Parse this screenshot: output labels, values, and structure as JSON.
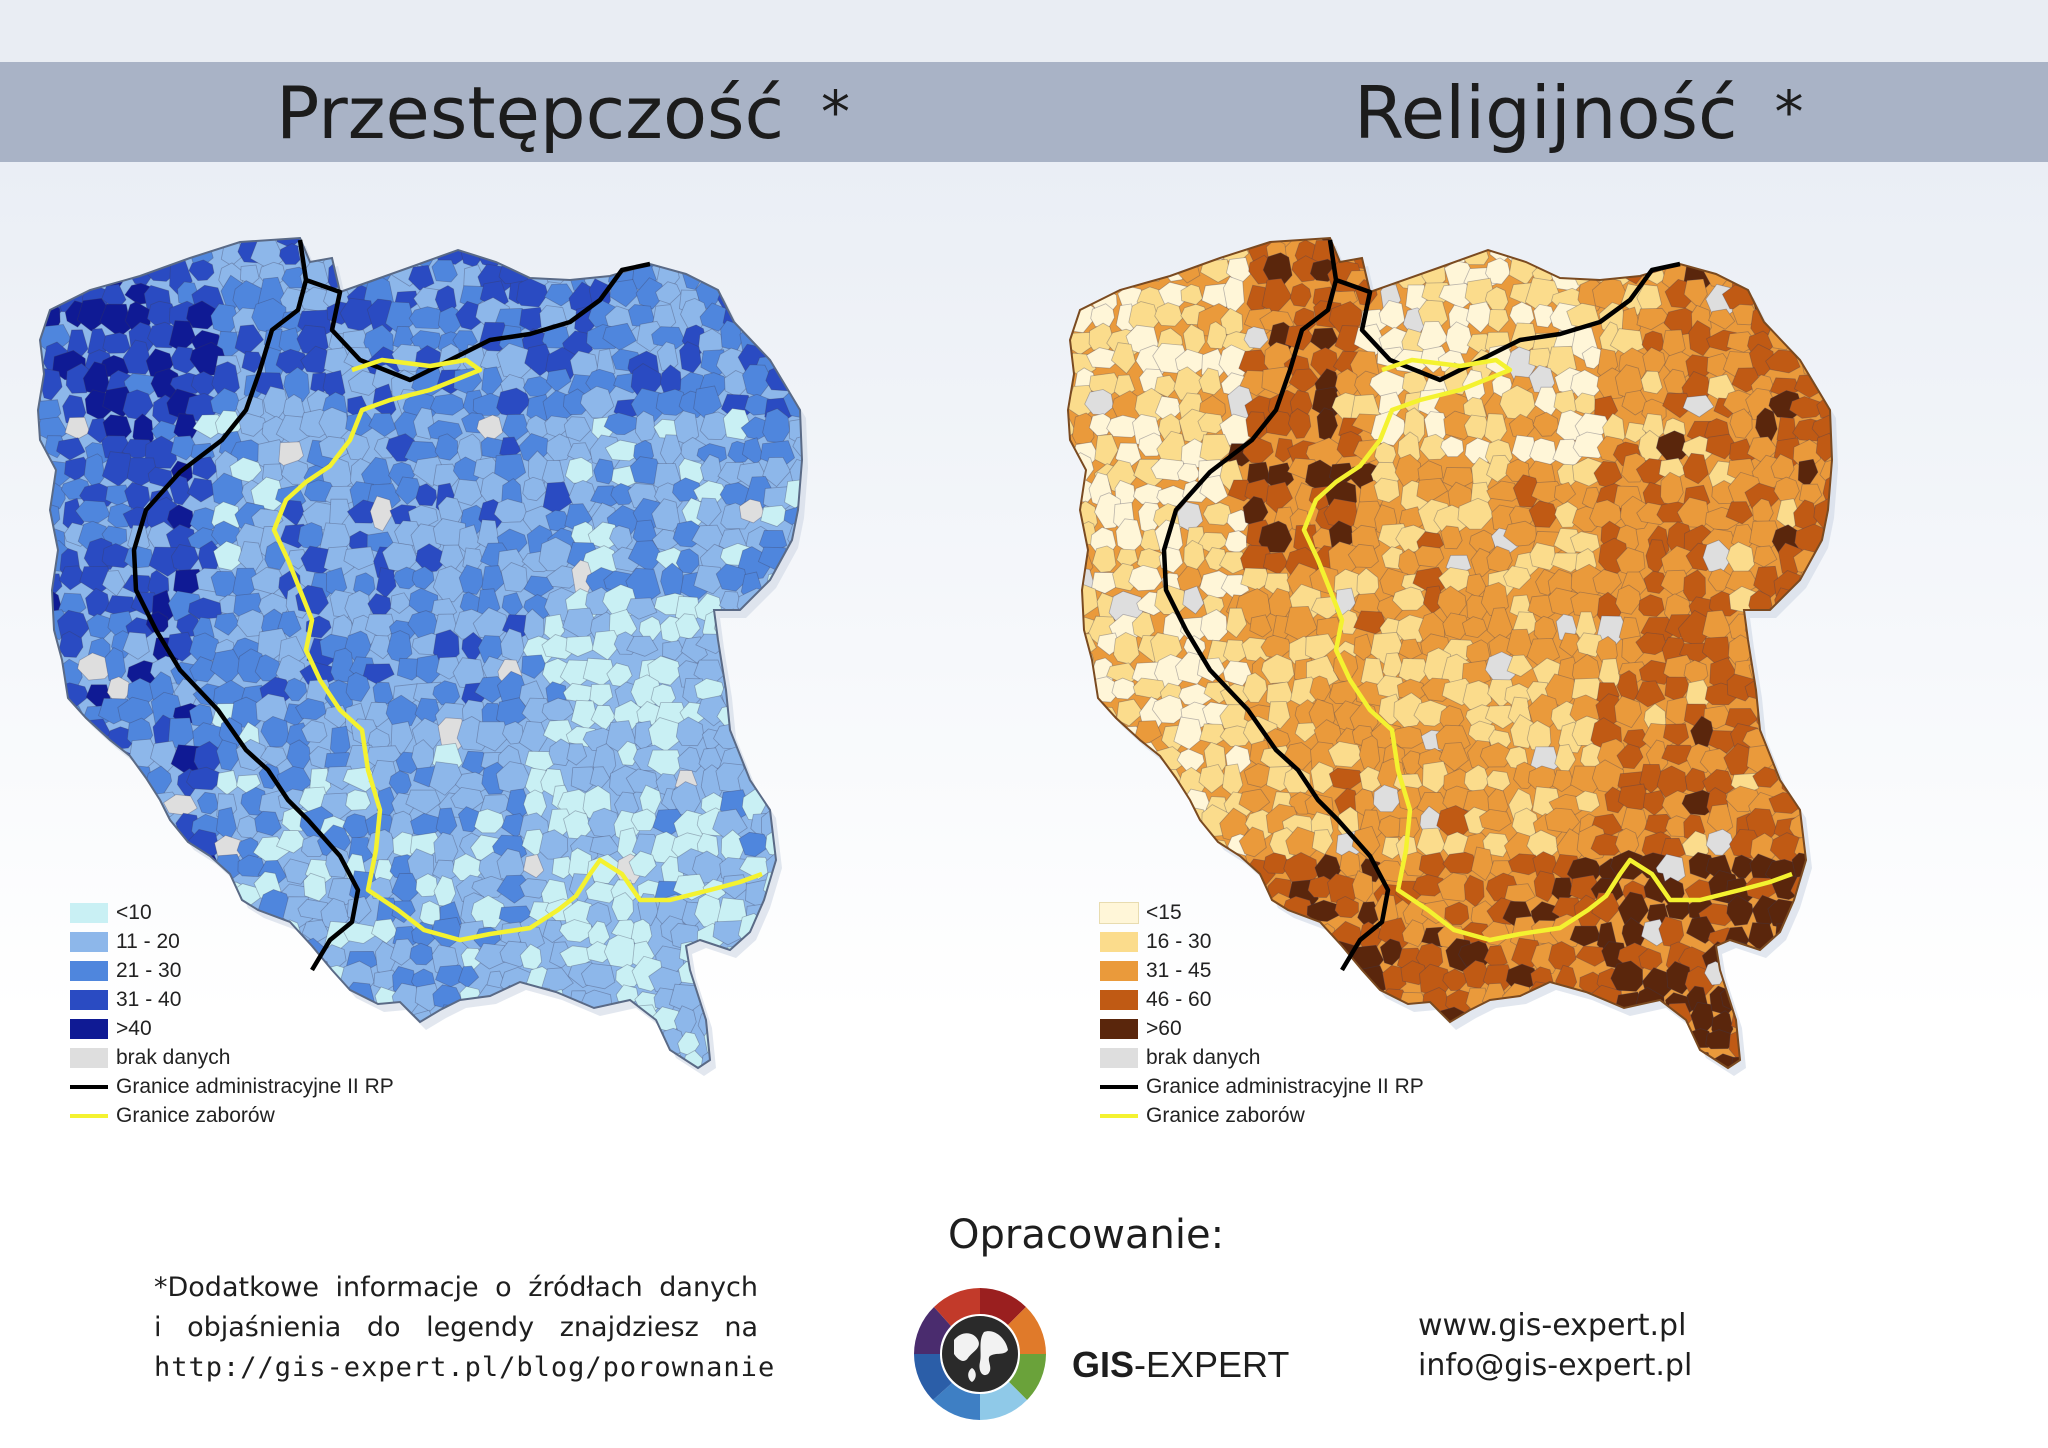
{
  "titles": {
    "left": "Przestępczość",
    "right": "Religijność",
    "asterisk": "*"
  },
  "colors": {
    "left_scale": [
      "#c9f0f4",
      "#8db7ea",
      "#4f86dd",
      "#2a4bc2",
      "#0f1a94"
    ],
    "right_scale": [
      "#fff6d8",
      "#fbdc8c",
      "#ea9a3b",
      "#c05a14",
      "#5a260c"
    ],
    "no_data": "#dedede",
    "admin_border": "#000000",
    "partition_border": "#f4f230"
  },
  "legend_left": {
    "items": [
      "<10",
      "11 - 20",
      "21 - 30",
      "31 - 40",
      ">40"
    ],
    "no_data": "brak danych",
    "admin_border": "Granice administracyjne II RP",
    "partition_border": "Granice zaborów"
  },
  "legend_right": {
    "items": [
      "<15",
      "16 - 30",
      "31 - 45",
      "46 - 60",
      ">60"
    ],
    "no_data": "brak danych",
    "admin_border": "Granice administracyjne II RP",
    "partition_border": "Granice zaborów"
  },
  "footnote": {
    "line1": "*Dodatkowe informacje o źródłach danych",
    "line2": "i objaśnienia do legendy znajdziesz na",
    "line3": "http://gis-expert.pl/blog/porownanie"
  },
  "credits": {
    "heading": "Opracowanie:",
    "brand_bold": "GIS",
    "brand_rest": "-EXPERT",
    "website": "www.gis-expert.pl",
    "email": "info@gis-expert.pl"
  }
}
